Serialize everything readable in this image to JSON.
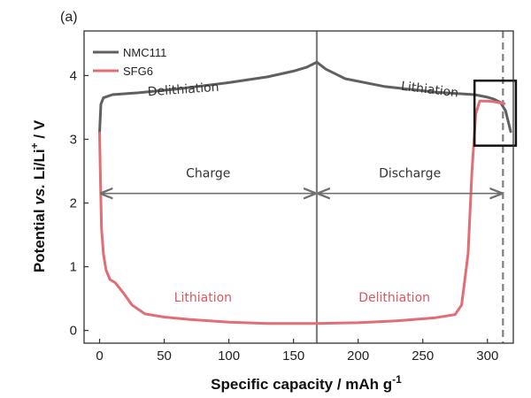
{
  "chart_data": {
    "type": "line",
    "panel_label": "(a)",
    "xlabel": "Specific capacity / mAh g",
    "xlabel_sup": "-1",
    "ylabel_pre": "Potential ",
    "ylabel_vs": "vs.",
    "ylabel_post": " Li/Li",
    "ylabel_sup": "+",
    "ylabel_unit": " / V",
    "xlim": [
      -12,
      320
    ],
    "ylim": [
      -0.2,
      4.7
    ],
    "xticks": [
      0,
      50,
      100,
      150,
      200,
      250,
      300
    ],
    "yticks": [
      0,
      1,
      2,
      3,
      4
    ],
    "grid": false,
    "legend_position": "top-left",
    "series": [
      {
        "name": "NMC111",
        "color": "#606060",
        "x": [
          0,
          1,
          3,
          10,
          30,
          60,
          100,
          130,
          150,
          160,
          168,
          175,
          190,
          220,
          260,
          290,
          300,
          305,
          310,
          314,
          318
        ],
        "y": [
          3.1,
          3.55,
          3.65,
          3.7,
          3.73,
          3.79,
          3.89,
          3.98,
          4.07,
          4.13,
          4.21,
          4.1,
          3.95,
          3.83,
          3.74,
          3.7,
          3.66,
          3.63,
          3.58,
          3.45,
          3.12
        ]
      },
      {
        "name": "SFG6",
        "color": "#e06e74",
        "x": [
          0,
          0.5,
          1.5,
          3,
          5,
          8,
          12,
          18,
          25,
          35,
          50,
          70,
          100,
          130,
          168,
          200,
          230,
          260,
          275,
          280,
          285,
          288,
          291,
          294,
          300,
          305,
          310,
          313
        ],
        "y": [
          3.1,
          2.5,
          1.6,
          1.2,
          0.95,
          0.8,
          0.75,
          0.6,
          0.4,
          0.26,
          0.21,
          0.17,
          0.13,
          0.11,
          0.11,
          0.12,
          0.15,
          0.2,
          0.25,
          0.4,
          1.2,
          2.5,
          3.4,
          3.6,
          3.6,
          3.59,
          3.57,
          3.56
        ]
      }
    ],
    "vertical_lines": [
      {
        "x": 168,
        "style": "solid",
        "color": "#808080"
      },
      {
        "x": 312,
        "style": "dashed",
        "color": "#808080"
      }
    ],
    "arrows": [
      {
        "from": 0,
        "to": 168,
        "y": 2.15,
        "label": "Charge",
        "label_y": 2.4
      },
      {
        "from": 168,
        "to": 312,
        "y": 2.15,
        "label": "Discharge",
        "label_y": 2.4
      }
    ],
    "annotations": [
      {
        "text": "Delithiation",
        "x": 65,
        "y": 3.72,
        "color": "#333333",
        "rotate": -4
      },
      {
        "text": "Lithiation",
        "x": 255,
        "y": 3.72,
        "color": "#333333",
        "rotate": 7
      },
      {
        "text": "Lithiation",
        "x": 80,
        "y": 0.45,
        "color": "#d9575f",
        "rotate": 0
      },
      {
        "text": "Delithiation",
        "x": 228,
        "y": 0.45,
        "color": "#d9575f",
        "rotate": 0
      }
    ],
    "highlight_box": {
      "x0": 290,
      "x1": 322,
      "y0": 2.9,
      "y1": 3.92
    }
  }
}
